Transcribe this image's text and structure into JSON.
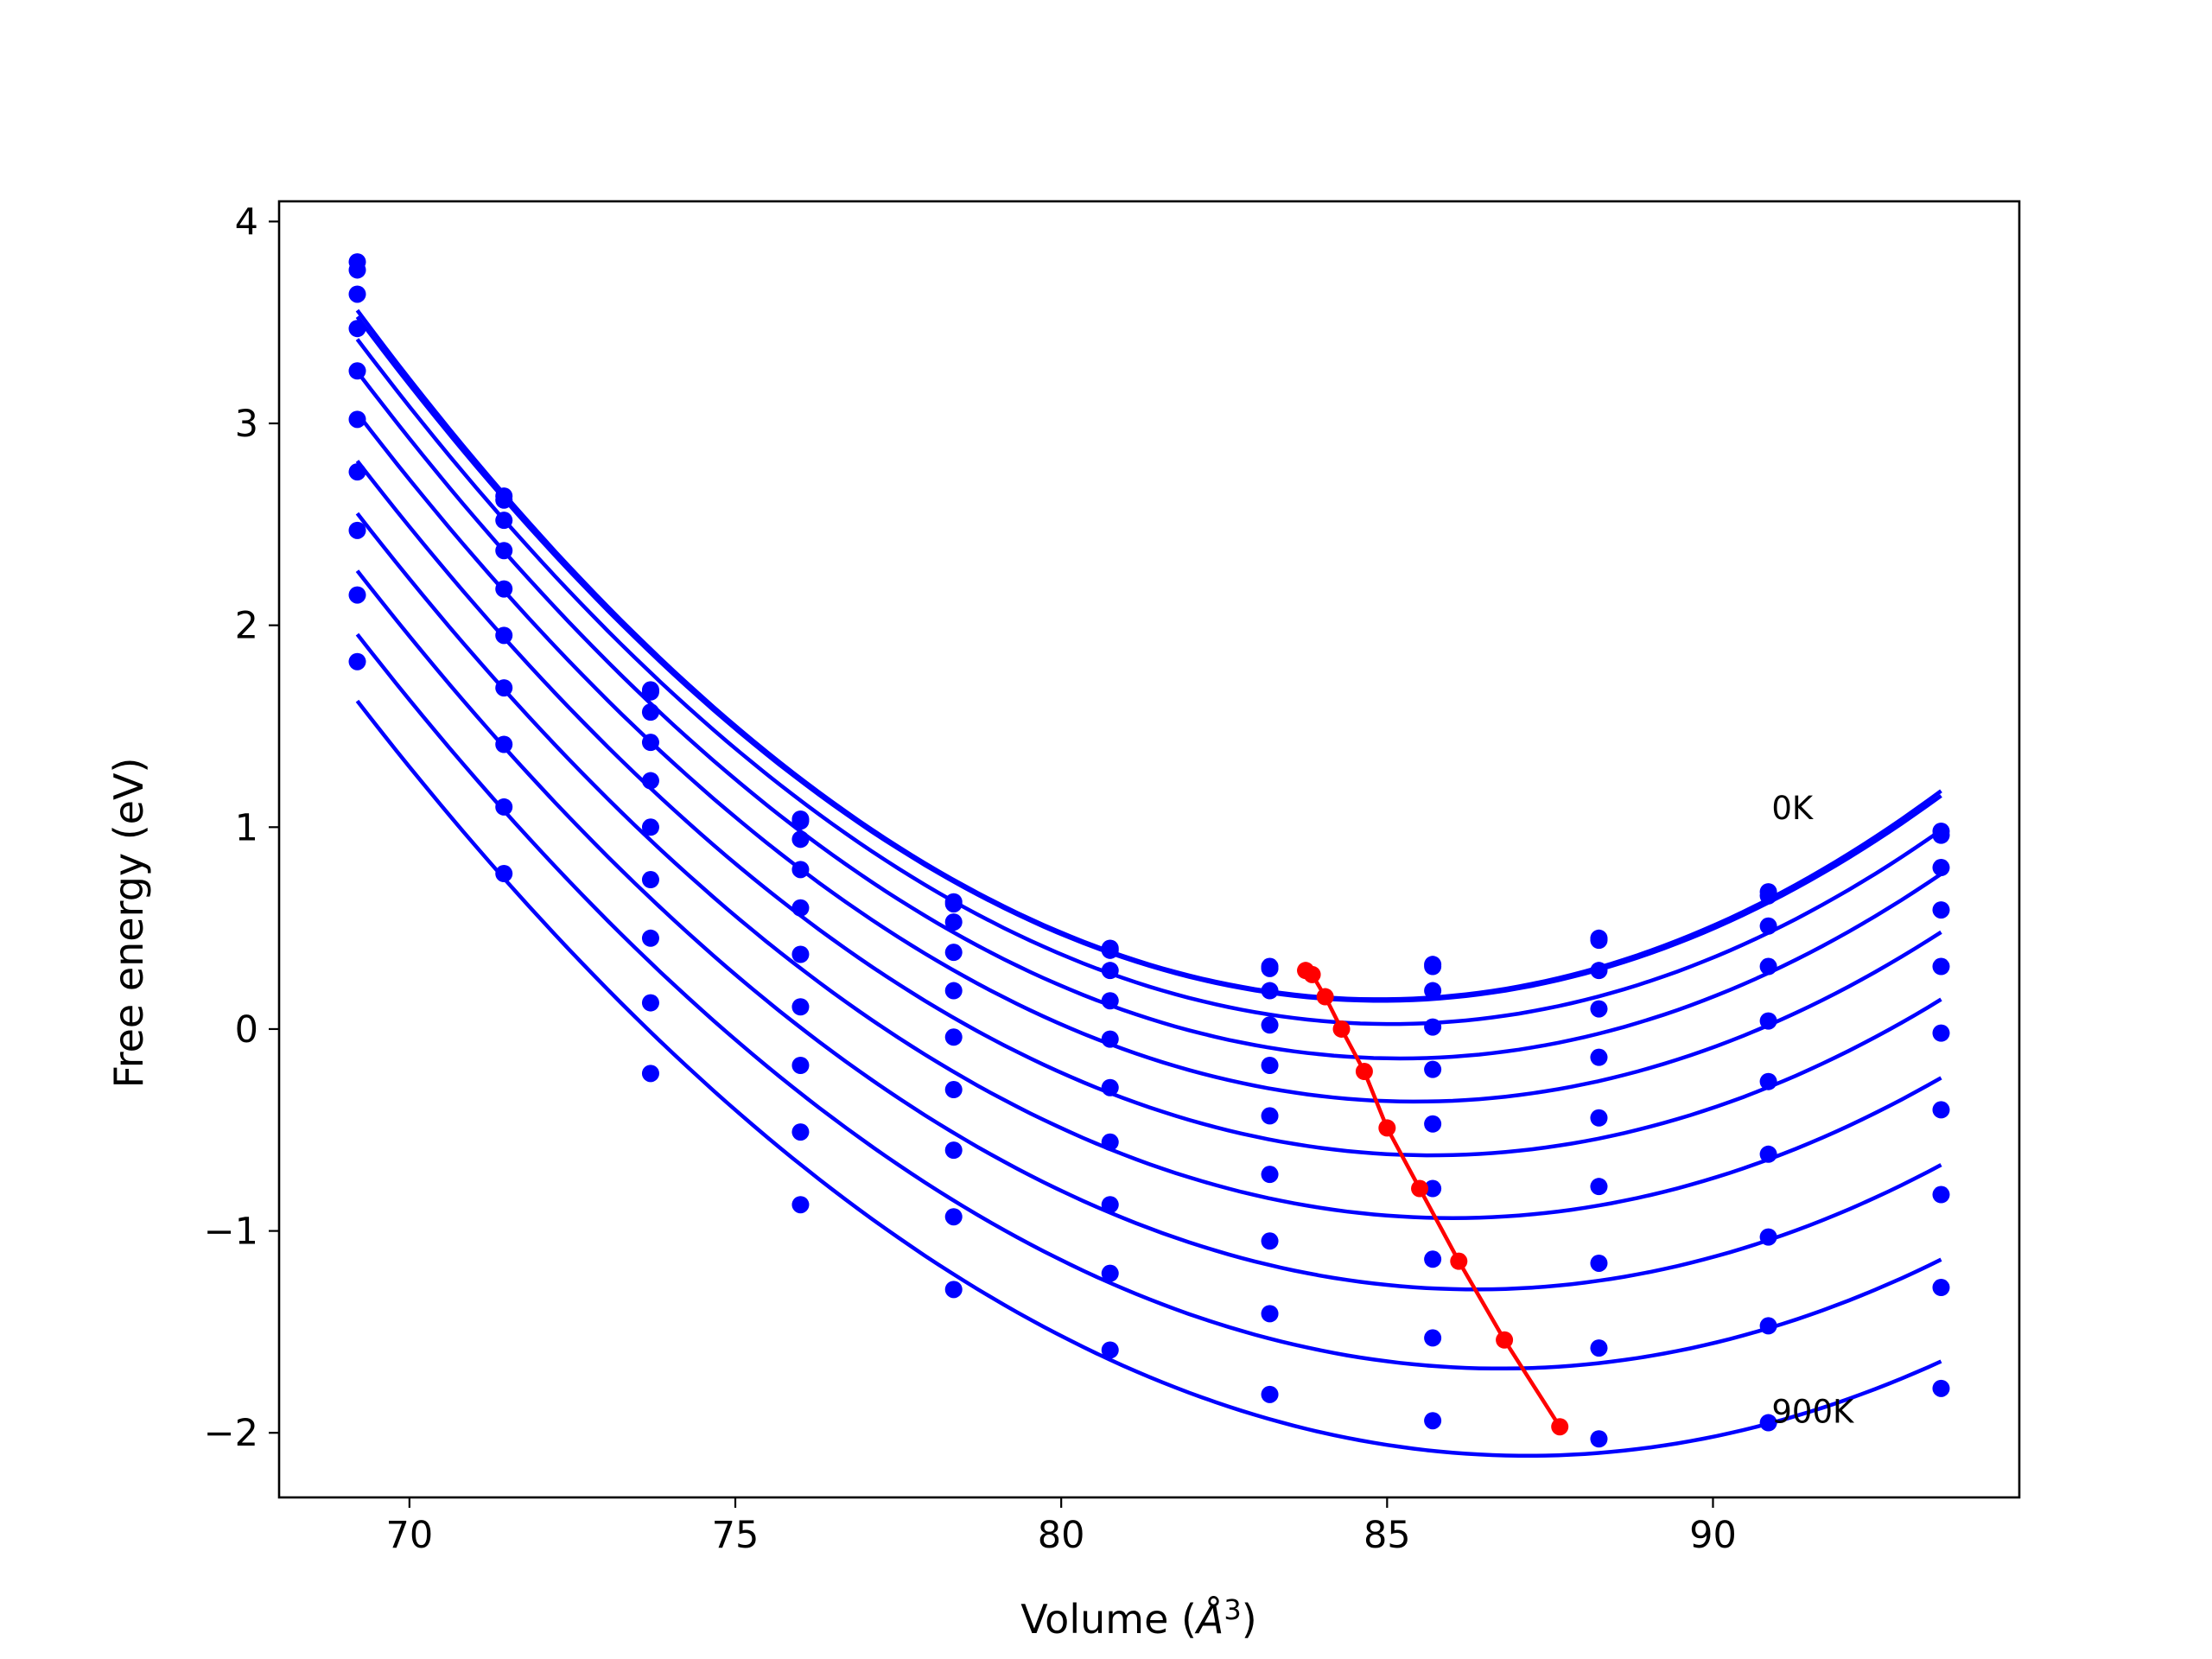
{
  "chart_data": {
    "type": "line",
    "xlabel": "Volume (",
    "xlabel_sym": "Å",
    "xlabel_sup": "3",
    "xlabel_close": ")",
    "ylabel": "Free energy (eV)",
    "xlim": [
      68,
      94.7
    ],
    "ylim": [
      -2.32,
      4.1
    ],
    "xticks": [
      70,
      75,
      80,
      85,
      90
    ],
    "xtick_labels": [
      "70",
      "75",
      "80",
      "85",
      "90"
    ],
    "yticks": [
      -2,
      -1,
      0,
      1,
      2,
      3,
      4
    ],
    "ytick_labels": [
      "−2",
      "−1",
      "0",
      "1",
      "2",
      "3",
      "4"
    ],
    "grid": false,
    "annotations": [
      {
        "text": "0K",
        "x": 90.9,
        "y": 1.04
      },
      {
        "text": "900K",
        "x": 90.9,
        "y": -1.95
      }
    ],
    "colors": {
      "curves": "#0000ff",
      "minima": "#ff0000"
    },
    "x": [
      69.2,
      71.45,
      73.7,
      76.0,
      78.35,
      80.75,
      83.2,
      85.7,
      88.25,
      90.85,
      93.5
    ],
    "series": [
      {
        "values": [
          3.8,
          2.64,
          1.68,
          1.04,
          0.63,
          0.4,
          0.31,
          0.32,
          0.45,
          0.68,
          0.98
        ]
      },
      {
        "values": [
          3.76,
          2.62,
          1.67,
          1.03,
          0.62,
          0.39,
          0.3,
          0.31,
          0.44,
          0.66,
          0.96
        ]
      },
      {
        "values": [
          3.64,
          2.52,
          1.57,
          0.94,
          0.53,
          0.29,
          0.19,
          0.19,
          0.29,
          0.51,
          0.8
        ]
      },
      {
        "values": [
          3.47,
          2.37,
          1.42,
          0.79,
          0.38,
          0.14,
          0.02,
          0.01,
          0.1,
          0.31,
          0.59
        ]
      },
      {
        "values": [
          3.26,
          2.18,
          1.23,
          0.6,
          0.19,
          -0.05,
          -0.18,
          -0.2,
          -0.14,
          0.04,
          0.31
        ]
      },
      {
        "values": [
          3.02,
          1.95,
          1.0,
          0.37,
          -0.04,
          -0.29,
          -0.43,
          -0.47,
          -0.44,
          -0.26,
          -0.02
        ]
      },
      {
        "values": [
          2.76,
          1.69,
          0.74,
          0.11,
          -0.3,
          -0.56,
          -0.72,
          -0.79,
          -0.78,
          -0.62,
          -0.4
        ]
      },
      {
        "values": [
          2.47,
          1.41,
          0.45,
          -0.18,
          -0.6,
          -0.87,
          -1.05,
          -1.14,
          -1.16,
          -1.03,
          -0.82
        ]
      },
      {
        "values": [
          2.15,
          1.1,
          0.13,
          -0.51,
          -0.93,
          -1.21,
          -1.41,
          -1.53,
          -1.58,
          -1.47,
          -1.28
        ]
      },
      {
        "values": [
          1.82,
          0.77,
          -0.22,
          -0.87,
          -1.29,
          -1.59,
          -1.81,
          -1.94,
          -2.03,
          -1.95,
          -1.78
        ]
      }
    ],
    "minima": {
      "x": [
        83.75,
        83.85,
        84.05,
        84.3,
        84.65,
        85.0,
        85.5,
        86.1,
        86.8,
        87.65
      ],
      "y": [
        0.29,
        0.27,
        0.16,
        0.0,
        -0.21,
        -0.49,
        -0.79,
        -1.15,
        -1.54,
        -1.97
      ]
    }
  }
}
